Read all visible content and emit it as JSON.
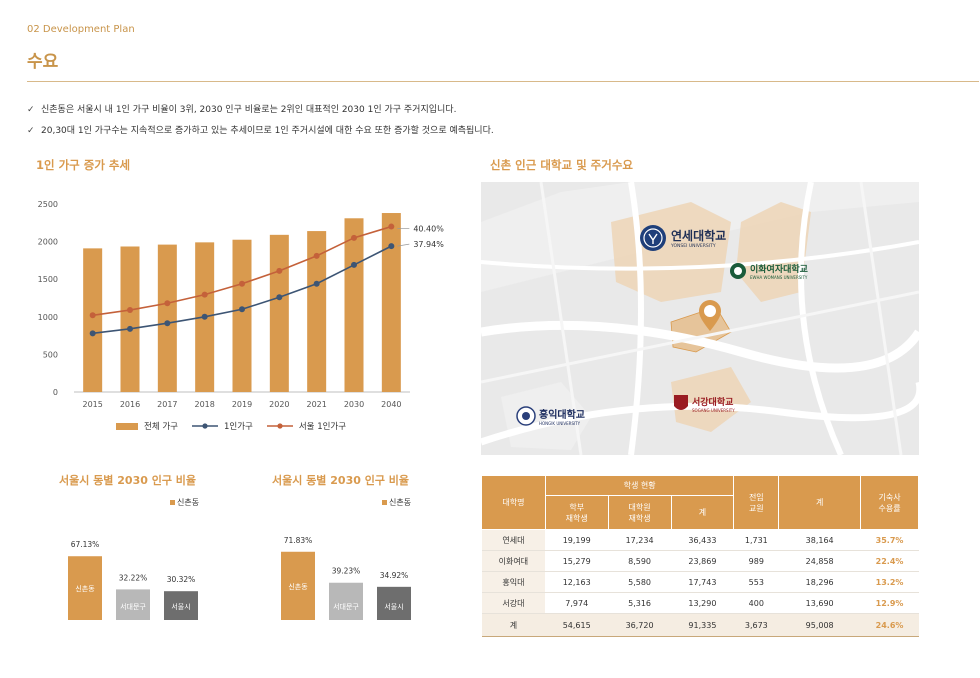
{
  "header": {
    "section": "02 Development Plan",
    "title": "수요"
  },
  "bullets": [
    "신촌동은 서울시 내 1인 가구 비율이 3위, 2030 인구 비율로는 2위인 대표적인 2030 1인 가구 주거지입니다.",
    "20,30대 1인 가구수는 지속적으로 증가하고 있는 추세이므로 1인 주거시설에 대한 수요 또한 증가할 것으로 예측됩니다."
  ],
  "trend": {
    "title": "1인 가구 증가 추세",
    "legend": {
      "total": "전체 가구",
      "single": "1인가구",
      "seoul_single": "서울 1인가구"
    },
    "annot_top": "40.40%",
    "annot_bottom": "37.94%"
  },
  "pop_left": {
    "title": "서울시 동별 2030 인구 비율",
    "legend": "신촌동"
  },
  "pop_right": {
    "title": "서울시 동별 2030 인구 비율",
    "legend": "신촌동"
  },
  "map": {
    "title": "신촌 인근 대학교 및 주거수요",
    "labels": {
      "yonsei_ko": "연세대학교",
      "yonsei_en": "YONSEI UNIVERSITY",
      "ewha_ko": "이화여자대학교",
      "ewha_en": "EWHA WOMANS UNIVERSITY",
      "hongik_ko": "홍익대학교",
      "hongik_en": "HONGIK UNIVERSITY",
      "sogang_ko": "서강대학교",
      "sogang_en": "SOGANG UNIVERSITY"
    }
  },
  "table": {
    "headers": {
      "university": "대학명",
      "students": "학생 현황",
      "undergrad": "학부\n재학생",
      "grad": "대학원\n재학생",
      "sum": "계",
      "faculty": "전임\n교원",
      "total": "계",
      "dorm": "기숙사\n수용률"
    },
    "rows": [
      {
        "name": "연세대",
        "undergrad": "19,199",
        "grad": "17,234",
        "sum": "36,433",
        "faculty": "1,731",
        "total": "38,164",
        "dorm": "35.7%"
      },
      {
        "name": "이화여대",
        "undergrad": "15,279",
        "grad": "8,590",
        "sum": "23,869",
        "faculty": "989",
        "total": "24,858",
        "dorm": "22.4%"
      },
      {
        "name": "홍익대",
        "undergrad": "12,163",
        "grad": "5,580",
        "sum": "17,743",
        "faculty": "553",
        "total": "18,296",
        "dorm": "13.2%"
      },
      {
        "name": "서강대",
        "undergrad": "7,974",
        "grad": "5,316",
        "sum": "13,290",
        "faculty": "400",
        "total": "13,690",
        "dorm": "12.9%"
      }
    ],
    "total_row": {
      "name": "계",
      "undergrad": "54,615",
      "grad": "36,720",
      "sum": "91,335",
      "faculty": "3,673",
      "total": "95,008",
      "dorm": "24.6%"
    }
  },
  "colors": {
    "accent": "#d99a4e",
    "bar": "#d99a4e",
    "single_line": "#3d5574",
    "seoul_line": "#c4613a",
    "gray_light": "#b8b8b8",
    "gray_dark": "#6e6e6e"
  },
  "chart_data": [
    {
      "type": "bar",
      "title": "1인 가구 증가 추세",
      "categories": [
        "2015",
        "2016",
        "2017",
        "2018",
        "2019",
        "2020",
        "2021",
        "2030",
        "2040"
      ],
      "ylim": [
        0,
        2500
      ],
      "yticks": [
        "0",
        "500",
        "1000",
        "1500",
        "2000",
        "2500"
      ],
      "series": [
        {
          "name": "전체 가구",
          "kind": "bar",
          "values": [
            1910,
            1935,
            1960,
            1990,
            2025,
            2090,
            2140,
            2310,
            2380
          ]
        },
        {
          "name": "1인가구",
          "kind": "line",
          "values": [
            780,
            840,
            915,
            1000,
            1100,
            1260,
            1440,
            1690,
            1940
          ]
        },
        {
          "name": "서울 1인가구",
          "kind": "line",
          "values": [
            1020,
            1090,
            1180,
            1295,
            1440,
            1610,
            1810,
            2050,
            2200
          ]
        }
      ],
      "annotations": [
        "40.40%",
        "37.94%"
      ]
    },
    {
      "type": "bar",
      "title": "서울시 동별 2030 인구 비율",
      "categories": [
        "신촌동",
        "서대문구",
        "서울시"
      ],
      "values": [
        67.13,
        32.22,
        30.32
      ],
      "value_labels": [
        "67.13%",
        "32.22%",
        "30.32%"
      ]
    },
    {
      "type": "bar",
      "title": "서울시 동별 2030 인구 비율",
      "categories": [
        "신촌동",
        "서대문구",
        "서울시"
      ],
      "values": [
        71.83,
        39.23,
        34.92
      ],
      "value_labels": [
        "71.83%",
        "39.23%",
        "34.92%"
      ]
    }
  ]
}
